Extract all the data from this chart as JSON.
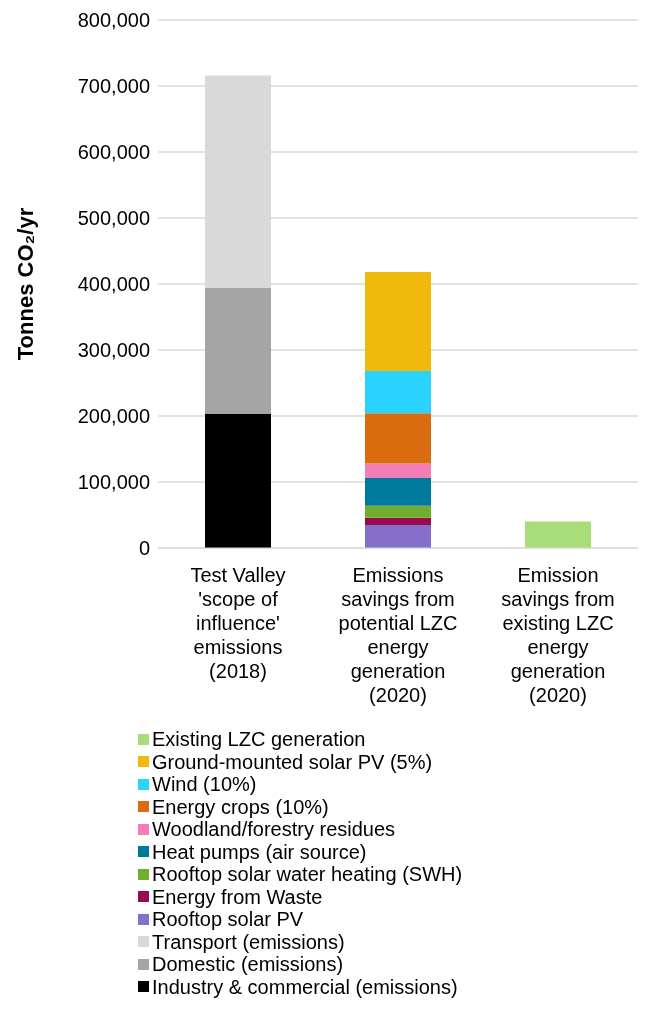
{
  "chart_data": {
    "type": "bar",
    "stacked": true,
    "ylabel": "Tonnes CO₂/yr",
    "categories": [
      "Test Valley 'scope of influence' emissions (2018)",
      "Emissions savings from potential LZC energy generation (2020)",
      "Emission savings from existing LZC energy generation (2020)"
    ],
    "series": [
      {
        "name": "Industry & commercial (emissions)",
        "color": "#000000",
        "values": [
          203000,
          null,
          null
        ]
      },
      {
        "name": "Domestic (emissions)",
        "color": "#a5a5a5",
        "values": [
          191000,
          null,
          null
        ]
      },
      {
        "name": "Transport (emissions)",
        "color": "#d9d9d9",
        "values": [
          322000,
          null,
          null
        ]
      },
      {
        "name": "Rooftop solar PV",
        "color": "#8470cb",
        "values": [
          null,
          35000,
          null
        ]
      },
      {
        "name": "Energy from Waste",
        "color": "#9b0a4c",
        "values": [
          null,
          11000,
          null
        ]
      },
      {
        "name": "Rooftop solar water heating (SWH)",
        "color": "#6fae2f",
        "values": [
          null,
          18000,
          null
        ]
      },
      {
        "name": "Heat pumps (air source)",
        "color": "#007a9c",
        "values": [
          null,
          42000,
          null
        ]
      },
      {
        "name": "Woodland/forestry residues",
        "color": "#f57db7",
        "values": [
          null,
          22000,
          null
        ]
      },
      {
        "name": "Energy crops (10%)",
        "color": "#da6c10",
        "values": [
          null,
          76000,
          null
        ]
      },
      {
        "name": "Wind (10%)",
        "color": "#29d3fe",
        "values": [
          null,
          64000,
          null
        ]
      },
      {
        "name": "Ground-mounted solar PV (5%)",
        "color": "#f1b90c",
        "values": [
          null,
          150000,
          null
        ]
      },
      {
        "name": "Existing LZC generation",
        "color": "#a8dd77",
        "values": [
          null,
          null,
          40000
        ]
      }
    ],
    "ylim": [
      0,
      800000
    ],
    "yticks": [
      0,
      {
        "value": 100000,
        "label": "100,000"
      },
      {
        "value": 200000,
        "label": "200,000"
      },
      {
        "value": 300000,
        "label": "300,000"
      },
      {
        "value": 400000,
        "label": "400,000"
      },
      {
        "value": 500000,
        "label": "500,000"
      },
      {
        "value": 600000,
        "label": "600,000"
      },
      {
        "value": 700000,
        "label": "700,000"
      },
      {
        "value": 800000,
        "label": "800,000"
      }
    ],
    "grid": "y",
    "legend": "bottom"
  }
}
